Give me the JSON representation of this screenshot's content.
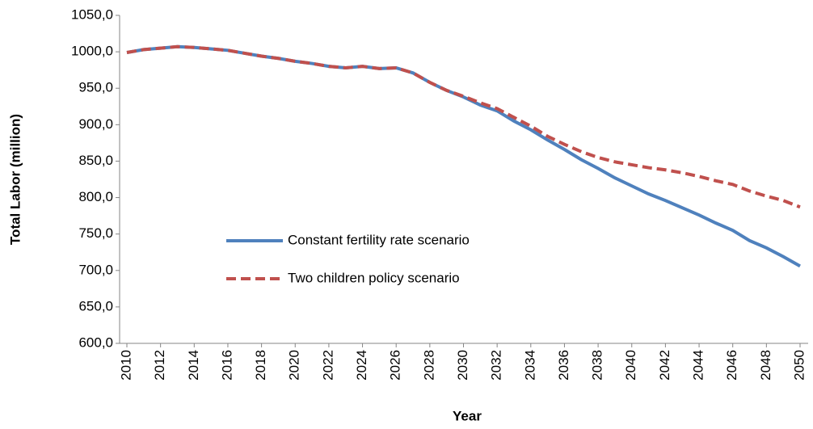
{
  "chart_data": {
    "type": "line",
    "y_label": "Total Labor (million)",
    "x_label": "Year",
    "x": [
      2010,
      2011,
      2012,
      2013,
      2014,
      2015,
      2016,
      2017,
      2018,
      2019,
      2020,
      2021,
      2022,
      2023,
      2024,
      2025,
      2026,
      2027,
      2028,
      2029,
      2030,
      2031,
      2032,
      2033,
      2034,
      2035,
      2036,
      2037,
      2038,
      2039,
      2040,
      2041,
      2042,
      2043,
      2044,
      2045,
      2046,
      2047,
      2048,
      2049,
      2050
    ],
    "series": [
      {
        "name": "Constant fertility rate scenario",
        "color": "#4f81bd",
        "line_style": "solid",
        "values": [
          999,
          1003,
          1005,
          1007,
          1006,
          1004,
          1002,
          998,
          994,
          991,
          987,
          984,
          980,
          978,
          980,
          977,
          978,
          971,
          958,
          947,
          938,
          927,
          919,
          905,
          893,
          879,
          866,
          852,
          840,
          827,
          816,
          805,
          796,
          786,
          776,
          765,
          755,
          741,
          731,
          719,
          706
        ]
      },
      {
        "name": "Two children policy scenario",
        "color": "#c0504d",
        "line_style": "dashed",
        "values": [
          999,
          1003,
          1005,
          1007,
          1006,
          1004,
          1002,
          998,
          994,
          991,
          987,
          984,
          980,
          978,
          980,
          977,
          978,
          971,
          958,
          947,
          939,
          930,
          922,
          910,
          898,
          884,
          873,
          863,
          855,
          849,
          845,
          841,
          838,
          834,
          829,
          823,
          818,
          809,
          802,
          796,
          787
        ]
      }
    ],
    "xlim": [
      2010,
      2050
    ],
    "xticks": [
      2010,
      2012,
      2014,
      2016,
      2018,
      2020,
      2022,
      2024,
      2026,
      2028,
      2030,
      2032,
      2034,
      2036,
      2038,
      2040,
      2042,
      2044,
      2046,
      2048,
      2050
    ],
    "ylim": [
      600,
      1050
    ],
    "yticks": [
      {
        "value": 600,
        "label": "600,0"
      },
      {
        "value": 650,
        "label": "650,0"
      },
      {
        "value": 700,
        "label": "700,0"
      },
      {
        "value": 750,
        "label": "750,0"
      },
      {
        "value": 800,
        "label": "800,0"
      },
      {
        "value": 850,
        "label": "850,0"
      },
      {
        "value": 900,
        "label": "900,0"
      },
      {
        "value": 950,
        "label": "950,0"
      },
      {
        "value": 1000,
        "label": "1000,0"
      },
      {
        "value": 1050,
        "label": "1050,0"
      }
    ],
    "grid": false,
    "legend": "center-left"
  }
}
